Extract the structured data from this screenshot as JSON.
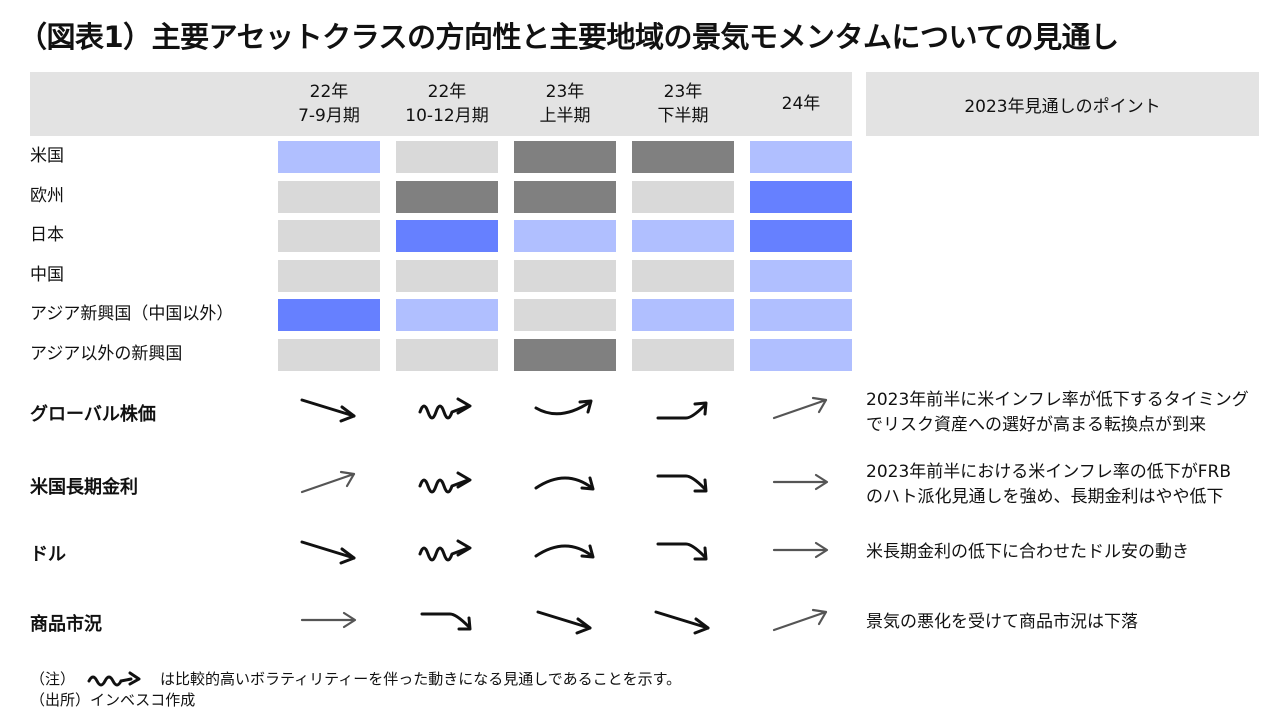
{
  "title": "（図表1）主要アセットクラスの方向性と主要地域の景気モメンタムについての見通し",
  "columns": [
    {
      "line1": "22年",
      "line2": "7-9月期"
    },
    {
      "line1": "22年",
      "line2": "10-12月期"
    },
    {
      "line1": "23年",
      "line2": "上半期"
    },
    {
      "line1": "23年",
      "line2": "下半期"
    },
    {
      "line1": "24年",
      "line2": ""
    }
  ],
  "points_header": "2023年見通しのポイント",
  "colors": {
    "strong": "#6680ff",
    "mild": "#b0bfff",
    "neutral": "#d9d9d9",
    "weak": "#808080",
    "header_band": "#e3e3e3",
    "arrow": "#111111",
    "arrow_soft": "#555555"
  },
  "regions": [
    {
      "label": "米国",
      "levels": [
        "mild",
        "neutral",
        "weak",
        "weak",
        "mild"
      ]
    },
    {
      "label": "欧州",
      "levels": [
        "neutral",
        "weak",
        "weak",
        "neutral",
        "strong"
      ]
    },
    {
      "label": "日本",
      "levels": [
        "neutral",
        "strong",
        "mild",
        "mild",
        "strong"
      ]
    },
    {
      "label": "中国",
      "levels": [
        "neutral",
        "neutral",
        "neutral",
        "neutral",
        "mild"
      ]
    },
    {
      "label": "アジア新興国（中国以外）",
      "levels": [
        "strong",
        "mild",
        "neutral",
        "mild",
        "mild"
      ]
    },
    {
      "label": "アジア以外の新興国",
      "levels": [
        "neutral",
        "neutral",
        "weak",
        "neutral",
        "mild"
      ]
    }
  ],
  "assets": [
    {
      "label": "グローバル株価",
      "arrows": [
        "down-arrow-icon",
        "volatile-arrow-icon",
        "curve-up-arrow-icon",
        "step-up-arrow-icon",
        "up-arrow-icon"
      ],
      "comment": [
        "2023年前半に米インフレ率が低下するタイミング",
        "でリスク資産への選好が高まる転換点が到来"
      ]
    },
    {
      "label": "米国長期金利",
      "arrows": [
        "up-arrow-icon",
        "volatile-arrow-icon",
        "curve-down-arrow-icon",
        "step-down-arrow-icon",
        "flat-arrow-icon"
      ],
      "comment": [
        "2023年前半における米インフレ率の低下がFRB",
        "のハト派化見通しを強め、長期金利はやや低下"
      ]
    },
    {
      "label": "ドル",
      "arrows": [
        "down-arrow-icon",
        "volatile-arrow-icon",
        "curve-down-arrow-icon",
        "step-down-arrow-icon",
        "flat-arrow-icon"
      ],
      "comment": [
        "米長期金利の低下に合わせたドル安の動き",
        ""
      ]
    },
    {
      "label": "商品市況",
      "arrows": [
        "flat-arrow-icon",
        "step-down-arrow-icon",
        "down-arrow-icon",
        "down-arrow-icon",
        "up-arrow-icon"
      ],
      "comment": [
        "景気の悪化を受けて商品市況は下落",
        ""
      ]
    }
  ],
  "notes": {
    "note1_prefix": "（注）",
    "note1_text": "は比較的高いボラティリティーを伴った動きになる見通しであることを示す。",
    "note1_icon": "volatile-arrow-icon",
    "note2": "（出所）インベスコ作成"
  }
}
